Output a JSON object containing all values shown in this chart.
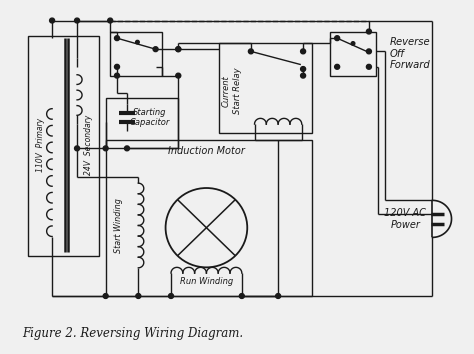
{
  "title": "Figure 2. Reversing Wiring Diagram.",
  "background_color": "#f0f0f0",
  "line_color": "#1a1a1a",
  "fig_width": 4.74,
  "fig_height": 3.54,
  "dpi": 100,
  "labels": {
    "transformer_primary": "110V  Primary",
    "transformer_secondary": "24V  Secondary",
    "starting_capacitor": "Starting\nCapacitor",
    "induction_motor": "Induction Motor",
    "start_winding": "Start Winding",
    "run_winding": "Run Winding",
    "current_start_relay": "Current\nStart Relay",
    "reverse_off_forward": "Reverse\nOff\nForward",
    "ac_power": "120V AC\nPower"
  }
}
